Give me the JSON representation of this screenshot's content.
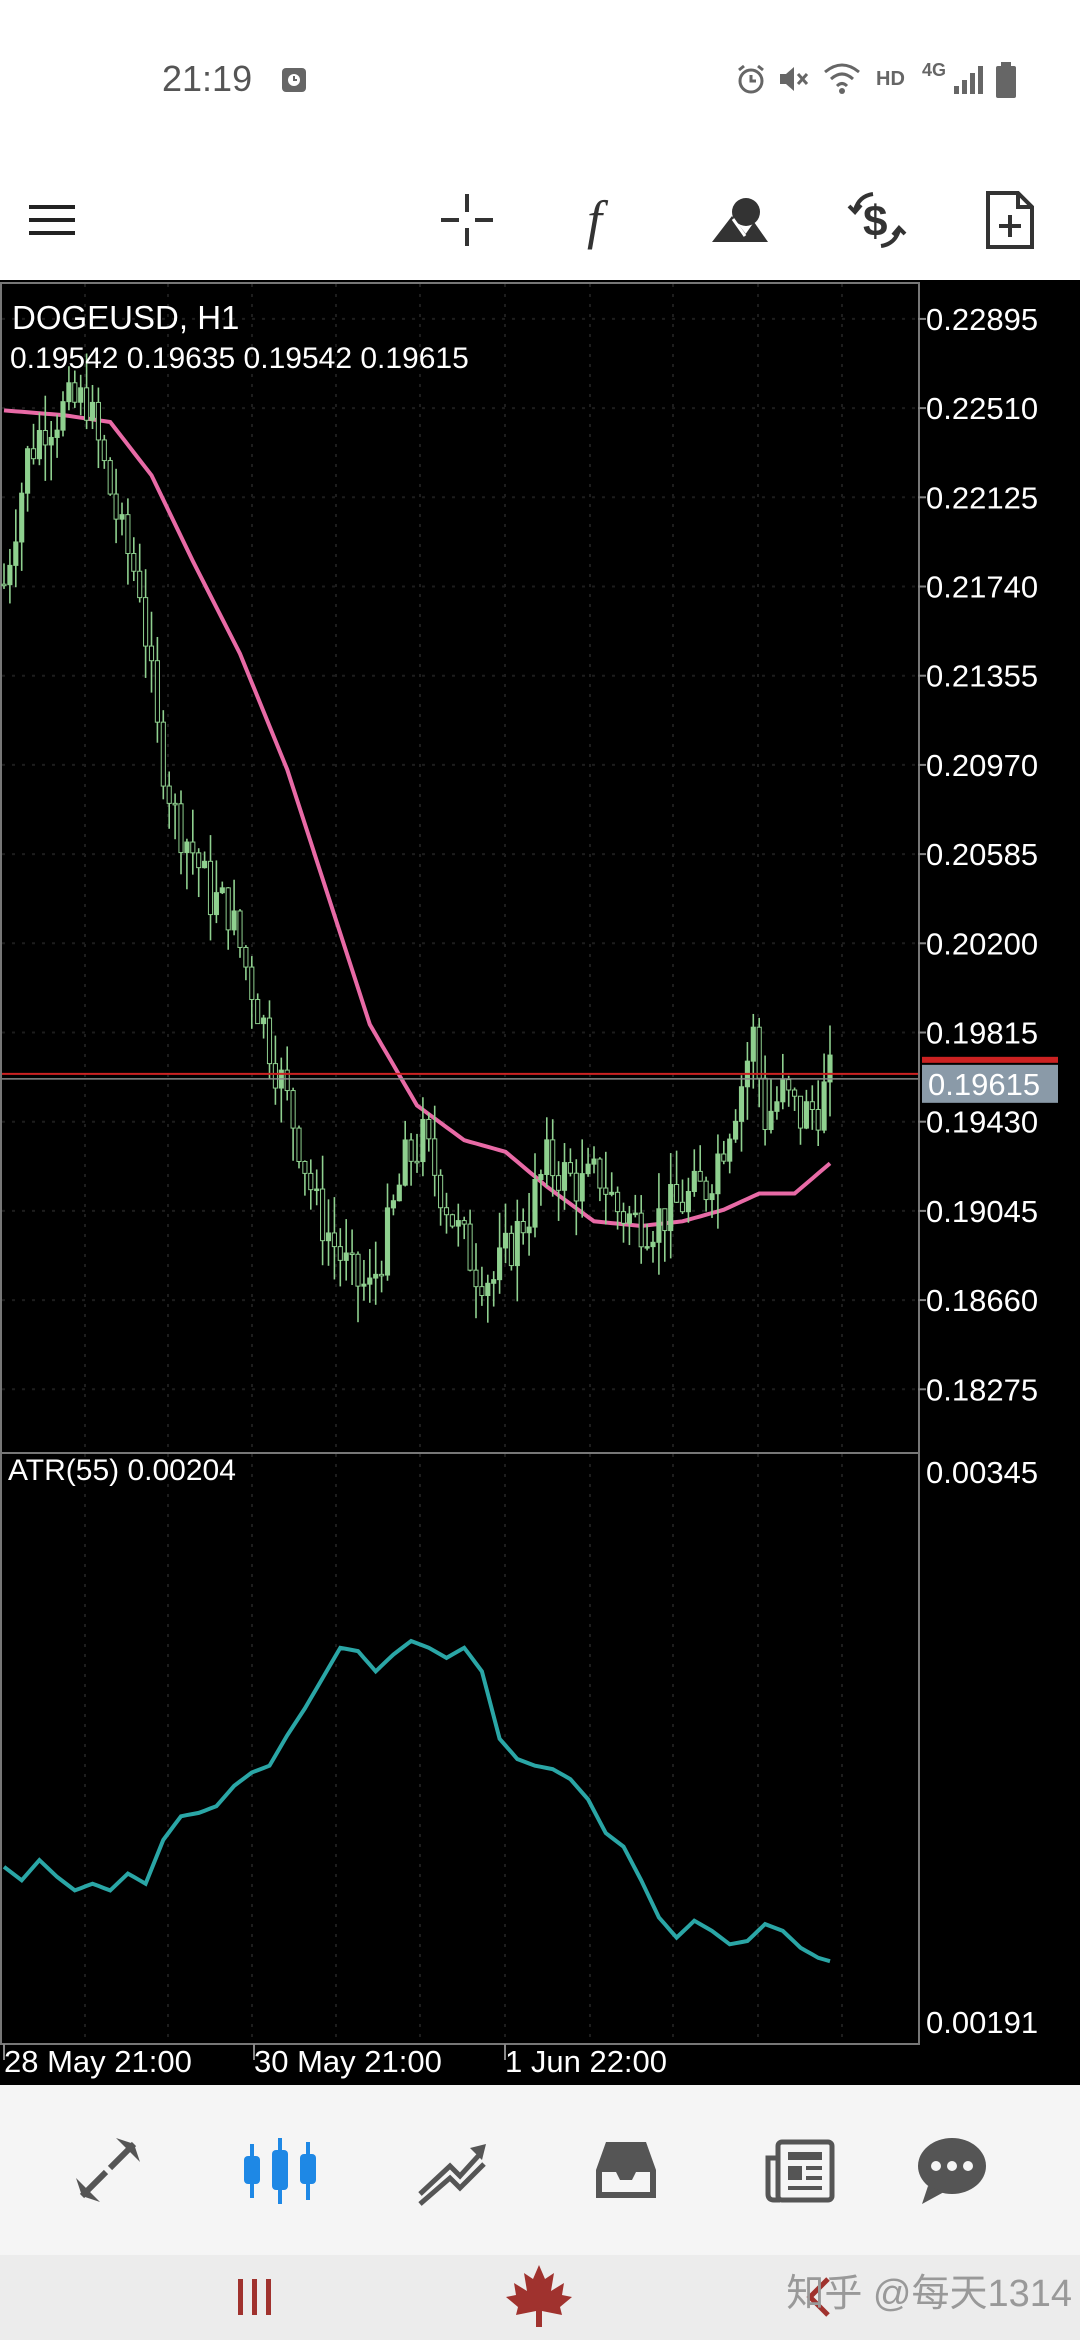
{
  "status_bar": {
    "time": "21:19",
    "network": "HD",
    "network_type": "4G",
    "icons": [
      "screenshot-icon",
      "alarm-icon",
      "mute-icon",
      "wifi-icon",
      "signal-icon",
      "battery-icon"
    ]
  },
  "toolbar": {
    "icons": [
      "menu-icon",
      "crosshair-icon",
      "function-icon",
      "objects-icon",
      "trade-icon",
      "new-order-icon"
    ]
  },
  "chart_header": {
    "symbol": "DOGEUSD, H1",
    "ohlc": "0.19542 0.19635 0.19542 0.19615"
  },
  "indicator": {
    "label": "ATR(55) 0.00204"
  },
  "colors": {
    "background": "#000000",
    "candle": "#8fd08f",
    "ma": "#e86aa6",
    "atr": "#2aa6a6",
    "price_line": "#cc2222",
    "price_label_bg": "#8a9aa8",
    "accent": "#1e88e5"
  },
  "chart_data": [
    {
      "type": "candlestick",
      "title": "DOGEUSD, H1",
      "ylim": [
        0.18,
        0.2305
      ],
      "y_ticks": [
        "0.22895",
        "0.22510",
        "0.22125",
        "0.21740",
        "0.21355",
        "0.20970",
        "0.20585",
        "0.20200",
        "0.19815",
        "0.19430",
        "0.19045",
        "0.18660",
        "0.18275"
      ],
      "current_price": "0.19615",
      "x_ticks": [
        "28 May 21:00",
        "30 May 21:00",
        "1 Jun 22:00"
      ],
      "close_anchors": [
        [
          0,
          0.2175
        ],
        [
          4,
          0.223
        ],
        [
          7,
          0.2245
        ],
        [
          10,
          0.225
        ],
        [
          14,
          0.2255
        ],
        [
          17,
          0.2225
        ],
        [
          20,
          0.2195
        ],
        [
          23,
          0.2175
        ],
        [
          26,
          0.211
        ],
        [
          29,
          0.2075
        ],
        [
          32,
          0.206
        ],
        [
          35,
          0.204
        ],
        [
          38,
          0.2035
        ],
        [
          41,
          0.201
        ],
        [
          44,
          0.1985
        ],
        [
          47,
          0.196
        ],
        [
          50,
          0.1935
        ],
        [
          53,
          0.1905
        ],
        [
          56,
          0.189
        ],
        [
          59,
          0.1875
        ],
        [
          62,
          0.187
        ],
        [
          65,
          0.1895
        ],
        [
          68,
          0.1925
        ],
        [
          71,
          0.1935
        ],
        [
          74,
          0.1915
        ],
        [
          77,
          0.1895
        ],
        [
          80,
          0.188
        ],
        [
          83,
          0.1875
        ],
        [
          86,
          0.189
        ],
        [
          89,
          0.1905
        ],
        [
          92,
          0.1925
        ],
        [
          95,
          0.192
        ],
        [
          98,
          0.1915
        ],
        [
          101,
          0.192
        ],
        [
          104,
          0.1905
        ],
        [
          107,
          0.19
        ],
        [
          110,
          0.19
        ],
        [
          113,
          0.1905
        ],
        [
          116,
          0.191
        ],
        [
          119,
          0.1915
        ],
        [
          122,
          0.1935
        ],
        [
          125,
          0.196
        ],
        [
          127,
          0.198
        ],
        [
          129,
          0.1945
        ],
        [
          132,
          0.1955
        ],
        [
          135,
          0.1945
        ],
        [
          138,
          0.195
        ],
        [
          140,
          0.19615
        ]
      ],
      "ma_anchors": [
        [
          0,
          0.225
        ],
        [
          10,
          0.2248
        ],
        [
          18,
          0.2245
        ],
        [
          25,
          0.2222
        ],
        [
          32,
          0.2185
        ],
        [
          40,
          0.2145
        ],
        [
          48,
          0.2095
        ],
        [
          55,
          0.204
        ],
        [
          62,
          0.1985
        ],
        [
          70,
          0.195
        ],
        [
          78,
          0.1935
        ],
        [
          85,
          0.193
        ],
        [
          92,
          0.1915
        ],
        [
          100,
          0.19
        ],
        [
          108,
          0.1898
        ],
        [
          115,
          0.19
        ],
        [
          122,
          0.1905
        ],
        [
          128,
          0.1912
        ],
        [
          134,
          0.1912
        ],
        [
          140,
          0.1925
        ]
      ]
    },
    {
      "type": "line",
      "title": "ATR(55) 0.00204",
      "ylim": [
        0.00191,
        0.00345
      ],
      "y_ticks": [
        "0.00345",
        "0.00191"
      ],
      "anchors": [
        [
          0,
          0.00232
        ],
        [
          3,
          0.00228
        ],
        [
          6,
          0.00234
        ],
        [
          9,
          0.00229
        ],
        [
          12,
          0.00225
        ],
        [
          15,
          0.00227
        ],
        [
          18,
          0.00225
        ],
        [
          21,
          0.0023
        ],
        [
          24,
          0.00227
        ],
        [
          27,
          0.0024
        ],
        [
          30,
          0.00247
        ],
        [
          33,
          0.00248
        ],
        [
          36,
          0.0025
        ],
        [
          39,
          0.00256
        ],
        [
          42,
          0.0026
        ],
        [
          45,
          0.00262
        ],
        [
          48,
          0.00271
        ],
        [
          51,
          0.00279
        ],
        [
          54,
          0.00288
        ],
        [
          57,
          0.00297
        ],
        [
          60,
          0.00296
        ],
        [
          63,
          0.0029
        ],
        [
          66,
          0.00295
        ],
        [
          69,
          0.00299
        ],
        [
          72,
          0.00297
        ],
        [
          75,
          0.00294
        ],
        [
          78,
          0.00297
        ],
        [
          81,
          0.0029
        ],
        [
          84,
          0.0027
        ],
        [
          87,
          0.00264
        ],
        [
          90,
          0.00262
        ],
        [
          93,
          0.00261
        ],
        [
          96,
          0.00258
        ],
        [
          99,
          0.00252
        ],
        [
          102,
          0.00242
        ],
        [
          105,
          0.00238
        ],
        [
          108,
          0.00228
        ],
        [
          111,
          0.00217
        ],
        [
          114,
          0.00211
        ],
        [
          117,
          0.00216
        ],
        [
          120,
          0.00213
        ],
        [
          123,
          0.00209
        ],
        [
          126,
          0.0021
        ],
        [
          129,
          0.00215
        ],
        [
          132,
          0.00213
        ],
        [
          135,
          0.00208
        ],
        [
          138,
          0.00205
        ],
        [
          140,
          0.00204
        ]
      ]
    }
  ],
  "bottom_nav": {
    "icons": [
      "quotes-icon",
      "chart-icon",
      "trade-icon",
      "history-icon",
      "news-icon",
      "messages-icon"
    ],
    "active": 1
  },
  "system_nav": {
    "icons": [
      "recents-icon",
      "maple-leaf-icon",
      "back-icon"
    ]
  },
  "watermark": "知乎 @每天1314"
}
